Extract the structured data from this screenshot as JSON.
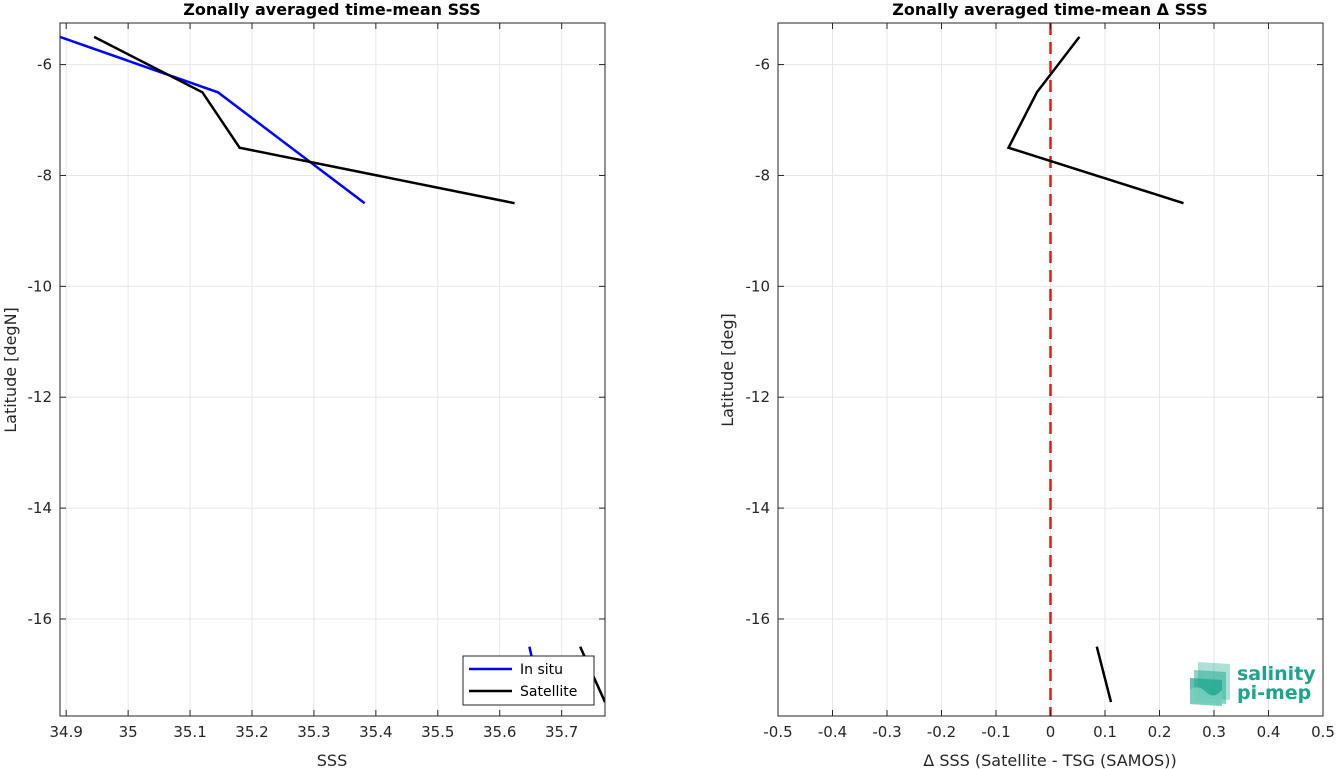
{
  "chart_data": [
    {
      "type": "line",
      "title": "Zonally averaged time-mean SSS",
      "xlabel": "SSS",
      "ylabel": "Latitude [degN]",
      "xlim": [
        34.89,
        35.77
      ],
      "ylim": [
        -17.75,
        -5.25
      ],
      "xticks": [
        34.9,
        35,
        35.1,
        35.2,
        35.3,
        35.4,
        35.5,
        35.6,
        35.7
      ],
      "xtick_labels": [
        "34.9",
        "35",
        "35.1",
        "35.2",
        "35.3",
        "35.4",
        "35.5",
        "35.6",
        "35.7"
      ],
      "yticks": [
        -6,
        -8,
        -10,
        -12,
        -14,
        -16
      ],
      "ytick_labels": [
        "-6",
        "-8",
        "-10",
        "-12",
        "-14",
        "-16"
      ],
      "grid": true,
      "legend_position": "bottom-right",
      "series": [
        {
          "name": "In situ",
          "color": "#0000ff",
          "segments": [
            [
              [
                34.89,
                -5.5
              ],
              [
                35.145,
                -6.5
              ],
              [
                35.382,
                -8.5
              ]
            ],
            [
              [
                35.648,
                -16.5
              ],
              [
                35.652,
                -16.7
              ]
            ]
          ]
        },
        {
          "name": "Satellite",
          "color": "#000000",
          "segments": [
            [
              [
                34.945,
                -5.5
              ],
              [
                35.12,
                -6.5
              ],
              [
                35.18,
                -7.5
              ],
              [
                35.624,
                -8.5
              ]
            ],
            [
              [
                35.73,
                -16.5
              ],
              [
                35.77,
                -17.5
              ]
            ]
          ]
        }
      ]
    },
    {
      "type": "line",
      "title": "Zonally averaged time-mean Δ SSS",
      "xlabel": "Δ SSS (Satellite - TSG (SAMOS))",
      "ylabel": "Latitude [deg]",
      "xlim": [
        -0.5,
        0.5
      ],
      "ylim": [
        -17.75,
        -5.25
      ],
      "xticks": [
        -0.5,
        -0.4,
        -0.3,
        -0.2,
        -0.1,
        0,
        0.1,
        0.2,
        0.3,
        0.4,
        0.5
      ],
      "xtick_labels": [
        "-0.5",
        "-0.4",
        "-0.3",
        "-0.2",
        "-0.1",
        "0",
        "0.1",
        "0.2",
        "0.3",
        "0.4",
        "0.5"
      ],
      "yticks": [
        -6,
        -8,
        -10,
        -12,
        -14,
        -16
      ],
      "ytick_labels": [
        "-6",
        "-8",
        "-10",
        "-12",
        "-14",
        "-16"
      ],
      "grid": true,
      "reference_line": {
        "x": 0,
        "color": "#e41a1c",
        "style": "dashed"
      },
      "series": [
        {
          "color": "#000000",
          "segments": [
            [
              [
                0.053,
                -5.5
              ],
              [
                -0.025,
                -6.5
              ],
              [
                -0.077,
                -7.5
              ],
              [
                0.244,
                -8.5
              ]
            ],
            [
              [
                0.085,
                -16.5
              ],
              [
                0.111,
                -17.5
              ]
            ]
          ]
        }
      ]
    }
  ],
  "logo": {
    "line1": "salinity",
    "line2": "pi-mep",
    "color": "#1aa58c"
  }
}
